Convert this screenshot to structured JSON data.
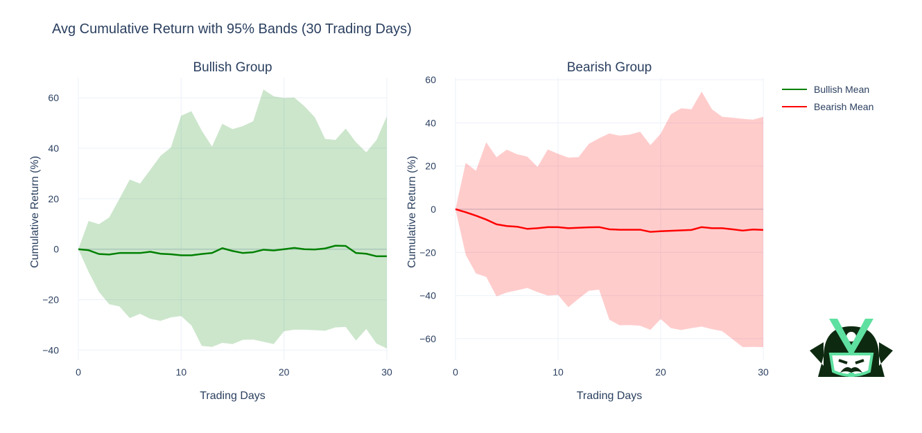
{
  "title": "Avg Cumulative Return with 95% Bands (30 Trading Days)",
  "legend": {
    "placement": "top-right",
    "items": [
      {
        "label": "Bullish Mean",
        "color": "#008000"
      },
      {
        "label": "Bearish Mean",
        "color": "#ff0000"
      }
    ]
  },
  "logo": {
    "name": "samurai-helmet-logo",
    "colors": {
      "dark": "#0d2a10",
      "accent": "#5ee0a0"
    }
  },
  "chart_data": [
    {
      "type": "line",
      "title": "Bullish Group",
      "xlabel": "Trading Days",
      "ylabel": "Cumulative Return (%)",
      "xlim": [
        0,
        30
      ],
      "ylim": [
        -44,
        68
      ],
      "xticks": [
        0,
        10,
        20,
        30
      ],
      "yticks": [
        -40,
        -20,
        0,
        20,
        40,
        60
      ],
      "grid": true,
      "line_color": "#008000",
      "band_color": "rgba(0,128,0,0.2)",
      "x": [
        0,
        1,
        2,
        3,
        4,
        5,
        6,
        7,
        8,
        9,
        10,
        11,
        12,
        13,
        14,
        15,
        16,
        17,
        18,
        19,
        20,
        21,
        22,
        23,
        24,
        25,
        26,
        27,
        28,
        29,
        30
      ],
      "series": [
        {
          "name": "Bullish Mean",
          "values": [
            0,
            -0.4,
            -1.9,
            -2.1,
            -1.5,
            -1.5,
            -1.5,
            -1.0,
            -1.8,
            -2.0,
            -2.4,
            -2.4,
            -1.9,
            -1.5,
            0.4,
            -0.7,
            -1.5,
            -1.2,
            -0.2,
            -0.5,
            0,
            0.5,
            0,
            -0.1,
            0.3,
            1.4,
            1.3,
            -1.5,
            -1.8,
            -2.8,
            -2.8
          ]
        }
      ],
      "band_upper": [
        0,
        11.2,
        9.9,
        12.6,
        20,
        27.6,
        26,
        31.5,
        37,
        40.3,
        52.9,
        54.7,
        47,
        40.7,
        49.7,
        47.6,
        48.8,
        50.7,
        63.3,
        60.6,
        59.9,
        60.1,
        56.6,
        52.3,
        43.7,
        43.3,
        47.8,
        42.4,
        38.4,
        43.3,
        52.7
      ],
      "band_lower": [
        0,
        -9,
        -16.9,
        -21.8,
        -22.7,
        -27.3,
        -25.6,
        -27.6,
        -28.4,
        -27,
        -26.5,
        -30.2,
        -38.3,
        -38.7,
        -37.1,
        -37.6,
        -35.9,
        -35.8,
        -36.7,
        -37.6,
        -32.5,
        -31.9,
        -31.9,
        -32.1,
        -32.3,
        -31,
        -30.8,
        -36.2,
        -31.6,
        -37.4,
        -39.3
      ]
    },
    {
      "type": "line",
      "title": "Bearish Group",
      "xlabel": "Trading Days",
      "ylabel": "Cumulative Return (%)",
      "xlim": [
        0,
        30
      ],
      "ylim": [
        -70,
        61
      ],
      "xticks": [
        0,
        10,
        20,
        30
      ],
      "yticks": [
        -60,
        -40,
        -20,
        0,
        20,
        40,
        60
      ],
      "grid": true,
      "line_color": "#ff0000",
      "band_color": "rgba(255,0,0,0.2)",
      "x": [
        0,
        1,
        2,
        3,
        4,
        5,
        6,
        7,
        8,
        9,
        10,
        11,
        12,
        13,
        14,
        15,
        16,
        17,
        18,
        19,
        20,
        21,
        22,
        23,
        24,
        25,
        26,
        27,
        28,
        29,
        30
      ],
      "series": [
        {
          "name": "Bearish Mean",
          "values": [
            0,
            -1.4,
            -3.0,
            -4.8,
            -7.0,
            -7.8,
            -8.1,
            -9.1,
            -8.8,
            -8.3,
            -8.3,
            -8.8,
            -8.6,
            -8.4,
            -8.3,
            -9.3,
            -9.5,
            -9.5,
            -9.5,
            -10.5,
            -10.2,
            -10.0,
            -9.8,
            -9.6,
            -8.3,
            -8.8,
            -8.8,
            -9.3,
            -9.9,
            -9.4,
            -9.6
          ]
        }
      ],
      "band_upper": [
        0,
        21.5,
        17.8,
        31,
        24.1,
        27.6,
        25.5,
        24.4,
        19.6,
        27.7,
        25.7,
        23.9,
        24.1,
        30.3,
        32.9,
        35.1,
        34.1,
        34.6,
        35.9,
        29.7,
        35,
        44,
        46.8,
        46.3,
        54.5,
        46.3,
        42.8,
        42.4,
        41.9,
        41.5,
        42.8
      ],
      "band_lower": [
        0,
        -21.1,
        -29.8,
        -31.4,
        -40.4,
        -38.6,
        -37.6,
        -36.5,
        -38.4,
        -40,
        -39.7,
        -45.4,
        -41.5,
        -37.8,
        -37.3,
        -51.2,
        -53.8,
        -53.7,
        -54,
        -55.9,
        -50.9,
        -55.1,
        -56,
        -55.1,
        -54.4,
        -55.6,
        -56.5,
        -60.2,
        -63.9,
        -63.8,
        -63.9
      ]
    }
  ]
}
